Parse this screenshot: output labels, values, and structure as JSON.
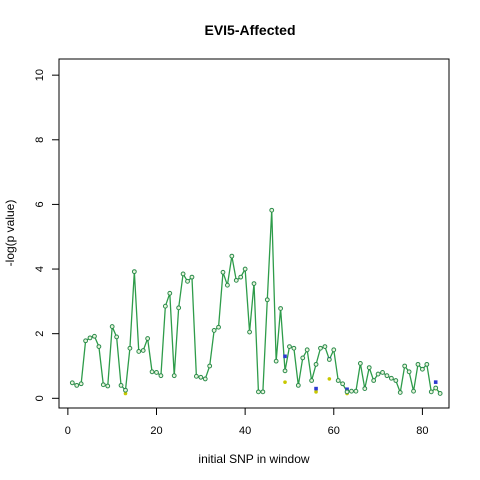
{
  "chart_data": {
    "type": "line",
    "title": "EVI5-Affected",
    "xlabel": "initial SNP in window",
    "ylabel": "-log(p value)",
    "xlim": [
      -2,
      86
    ],
    "ylim": [
      -0.3,
      10.5
    ],
    "x_ticks": [
      0,
      20,
      40,
      60,
      80
    ],
    "y_ticks": [
      0,
      2,
      4,
      6,
      8,
      10
    ],
    "grid": false,
    "colors": {
      "line": "#2e9c4a",
      "point_stroke": "#2a8a4a",
      "point_fill": "#e8f5dd",
      "series2_point": "#2d3ad0",
      "series3_point": "#c8c800"
    },
    "series": [
      {
        "x": [
          1,
          2,
          3,
          4,
          5,
          6,
          7,
          8,
          9,
          10,
          11,
          12,
          13,
          14,
          15,
          16,
          17,
          18,
          19,
          20,
          21,
          22,
          23,
          24,
          25,
          26,
          27,
          28,
          29,
          30,
          31,
          32,
          33,
          34,
          35,
          36,
          37,
          38,
          39,
          40,
          41,
          42,
          43,
          44,
          45,
          46,
          47,
          48,
          49,
          50,
          51,
          52,
          53,
          54,
          55,
          56,
          57,
          58,
          59,
          60,
          61,
          62,
          63,
          64,
          65,
          66,
          67,
          68,
          69,
          70,
          71,
          72,
          73,
          74,
          75,
          76,
          77,
          78,
          79,
          80,
          81,
          82,
          83,
          84
        ],
        "values": [
          0.48,
          0.4,
          0.45,
          1.78,
          1.87,
          1.92,
          1.6,
          0.42,
          0.38,
          2.22,
          1.9,
          0.4,
          0.25,
          1.55,
          3.92,
          1.45,
          1.48,
          1.85,
          0.82,
          0.8,
          0.7,
          2.85,
          3.25,
          0.7,
          2.8,
          3.85,
          3.62,
          3.75,
          0.68,
          0.65,
          0.6,
          1.0,
          2.1,
          2.2,
          3.9,
          3.5,
          4.4,
          3.65,
          3.75,
          4.0,
          2.05,
          3.55,
          0.2,
          0.2,
          3.05,
          5.82,
          1.15,
          2.78,
          0.85,
          1.6,
          1.55,
          0.4,
          1.25,
          1.5,
          0.55,
          1.05,
          1.55,
          1.6,
          1.2,
          1.5,
          0.55,
          0.45,
          0.2,
          0.22,
          0.22,
          1.08,
          0.3,
          0.95,
          0.55,
          0.75,
          0.8,
          0.7,
          0.62,
          0.55,
          0.18,
          1.0,
          0.82,
          0.22,
          1.05,
          0.9,
          1.05,
          0.2,
          0.32,
          0.15
        ]
      },
      {
        "x": [
          13,
          49,
          56,
          59,
          63,
          83
        ],
        "values": [
          0.25,
          1.3,
          0.3,
          1.22,
          0.28,
          0.5
        ]
      },
      {
        "x": [
          13,
          49,
          56,
          59,
          63,
          83
        ],
        "values": [
          0.15,
          0.5,
          0.2,
          0.6,
          0.15,
          0.3
        ]
      }
    ]
  }
}
